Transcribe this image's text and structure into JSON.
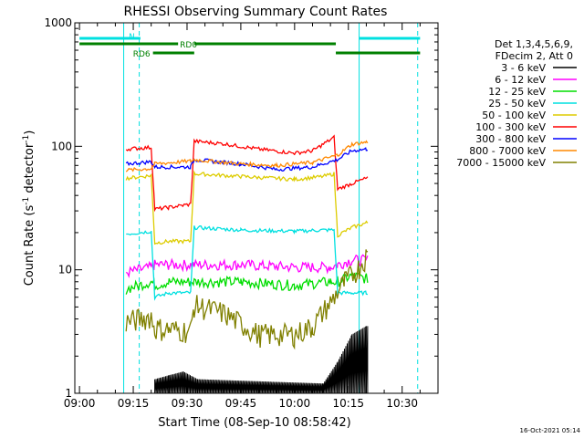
{
  "chart_data": {
    "type": "line",
    "title": "RHESSI Observing Summary Count Rates",
    "xlabel": "Start Time (08-Sep-10 08:58:42)",
    "ylabel_parts": {
      "prefix": "Count Rate (s",
      "exp1": "-1",
      "mid": " detector",
      "exp2": "-1",
      "suffix": ")"
    },
    "yscale": "log",
    "ylim": [
      1,
      1000
    ],
    "y_ticks": [
      {
        "value": 1,
        "label": "1"
      },
      {
        "value": 10,
        "label": "10"
      },
      {
        "value": 100,
        "label": "100"
      },
      {
        "value": 1000,
        "label": "1000"
      }
    ],
    "xlim": [
      "08:58:42",
      "10:40:00"
    ],
    "x_ticks": [
      {
        "value": "09:00",
        "label": "09:00"
      },
      {
        "value": "09:15",
        "label": "09:15"
      },
      {
        "value": "09:30",
        "label": "09:30"
      },
      {
        "value": "09:45",
        "label": "09:45"
      },
      {
        "value": "10:00",
        "label": "10:00"
      },
      {
        "value": "10:15",
        "label": "10:15"
      },
      {
        "value": "10:30",
        "label": "10:30"
      }
    ],
    "legend_position": "right",
    "legend_header": [
      "Det 1,3,4,5,6,9,",
      "FDecim 2, Att 0"
    ],
    "date_stamp": "16-Oct-2021 05:14",
    "vertical_lines": [
      {
        "time": "09:12:20",
        "style": "solid",
        "color": "#00e0e0"
      },
      {
        "time": "09:16:40",
        "style": "dashed",
        "color": "#00e0e0"
      },
      {
        "time": "10:18:00",
        "style": "solid",
        "color": "#00e0e0"
      },
      {
        "time": "10:34:20",
        "style": "dashed",
        "color": "#00e0e0"
      }
    ],
    "flag_bars": [
      {
        "label": "N",
        "color": "#00e0e0",
        "level": "top",
        "segments": [
          [
            "09:00:00",
            "09:17:00"
          ],
          [
            "10:18:00",
            "10:35:00"
          ]
        ]
      },
      {
        "label": "RD0",
        "color": "#008000",
        "level": "middle",
        "segments": [
          [
            "09:00:00",
            "09:27:30"
          ],
          [
            "09:32:00",
            "10:11:30"
          ]
        ]
      },
      {
        "label": "RD6",
        "color": "#008000",
        "level": "bottom",
        "segments": [
          [
            "09:20:30",
            "09:32:00"
          ],
          [
            "10:11:30",
            "10:35:00"
          ]
        ]
      }
    ],
    "series": [
      {
        "name": "3 - 6 keV",
        "color": "#000000",
        "x": [
          "09:21:00",
          "09:25:00",
          "09:29:00",
          "09:33:00",
          "10:08:00",
          "10:12:00",
          "10:16:00",
          "10:20:00"
        ],
        "y": [
          1.3,
          1.4,
          1.5,
          1.3,
          1.2,
          1.8,
          3.0,
          3.5
        ]
      },
      {
        "name": "6 - 12 keV",
        "color": "#ff00ff",
        "x": [
          "09:13:00",
          "09:20:00",
          "09:21:00",
          "09:25:00",
          "09:31:00",
          "09:32:00",
          "09:45:00",
          "10:00:00",
          "10:10:00",
          "10:12:00",
          "10:16:00",
          "10:20:00"
        ],
        "y": [
          9.5,
          10.5,
          11.0,
          11.0,
          11.0,
          11.0,
          11.0,
          10.5,
          10.5,
          11.0,
          12.0,
          12.0
        ]
      },
      {
        "name": "12 - 25 keV",
        "color": "#00dd00",
        "x": [
          "09:13:00",
          "09:20:00",
          "09:21:00",
          "09:25:00",
          "09:31:00",
          "09:32:00",
          "09:45:00",
          "10:00:00",
          "10:10:00",
          "10:12:00",
          "10:16:00",
          "10:20:00"
        ],
        "y": [
          7.0,
          8.0,
          7.5,
          8.0,
          8.0,
          8.0,
          8.0,
          7.5,
          8.0,
          8.0,
          9.0,
          8.5
        ]
      },
      {
        "name": "25 - 50 keV",
        "color": "#00e0e0",
        "x": [
          "09:13:00",
          "09:20:00",
          "09:21:00",
          "09:25:00",
          "09:31:00",
          "09:32:00",
          "09:45:00",
          "10:00:00",
          "10:08:00",
          "10:11:00",
          "10:12:00",
          "10:16:00",
          "10:20:00"
        ],
        "y": [
          19.5,
          20.5,
          6.0,
          6.5,
          6.5,
          22.0,
          21.0,
          20.5,
          21.0,
          21.0,
          6.5,
          6.5,
          6.5
        ]
      },
      {
        "name": "50 - 100 keV",
        "color": "#ddcc00",
        "x": [
          "09:13:00",
          "09:20:00",
          "09:21:00",
          "09:25:00",
          "09:31:00",
          "09:32:00",
          "09:45:00",
          "10:00:00",
          "10:08:00",
          "10:11:00",
          "10:12:00",
          "10:16:00",
          "10:20:00"
        ],
        "y": [
          55,
          58,
          16.5,
          17,
          17,
          60,
          57,
          54,
          57,
          60,
          19,
          22,
          24
        ]
      },
      {
        "name": "100 - 300 keV",
        "color": "#ff0000",
        "x": [
          "09:13:00",
          "09:20:00",
          "09:21:00",
          "09:25:00",
          "09:31:00",
          "09:32:00",
          "09:40:00",
          "09:50:00",
          "10:00:00",
          "10:05:00",
          "10:11:00",
          "10:12:00",
          "10:16:00",
          "10:20:00"
        ],
        "y": [
          95,
          98,
          31,
          32,
          34,
          110,
          105,
          95,
          88,
          92,
          118,
          45,
          50,
          55
        ]
      },
      {
        "name": "300 - 800 keV",
        "color": "#0000ff",
        "x": [
          "09:13:00",
          "09:20:00",
          "09:21:00",
          "09:31:00",
          "09:32:00",
          "09:45:00",
          "09:55:00",
          "10:05:00",
          "10:12:00",
          "10:16:00",
          "10:20:00"
        ],
        "y": [
          72,
          75,
          68,
          68,
          78,
          72,
          65,
          68,
          78,
          92,
          95
        ]
      },
      {
        "name": "800 - 7000 keV",
        "color": "#ff8800",
        "x": [
          "09:13:00",
          "09:20:00",
          "09:21:00",
          "09:31:00",
          "09:32:00",
          "09:45:00",
          "09:55:00",
          "10:05:00",
          "10:12:00",
          "10:16:00",
          "10:20:00"
        ],
        "y": [
          64,
          66,
          72,
          76,
          78,
          72,
          70,
          74,
          85,
          104,
          108
        ]
      },
      {
        "name": "7000 - 15000 keV",
        "color": "#808000",
        "x": [
          "09:13:00",
          "09:20:00",
          "09:21:00",
          "09:25:00",
          "09:31:00",
          "09:32:00",
          "09:40:00",
          "09:50:00",
          "10:00:00",
          "10:05:00",
          "10:10:00",
          "10:14:00",
          "10:18:00",
          "10:20:00"
        ],
        "y": [
          3.8,
          4.2,
          3.4,
          3.3,
          3.2,
          5.2,
          4.5,
          3.0,
          3.0,
          3.5,
          5.5,
          8.0,
          10.5,
          13.0
        ]
      }
    ]
  }
}
